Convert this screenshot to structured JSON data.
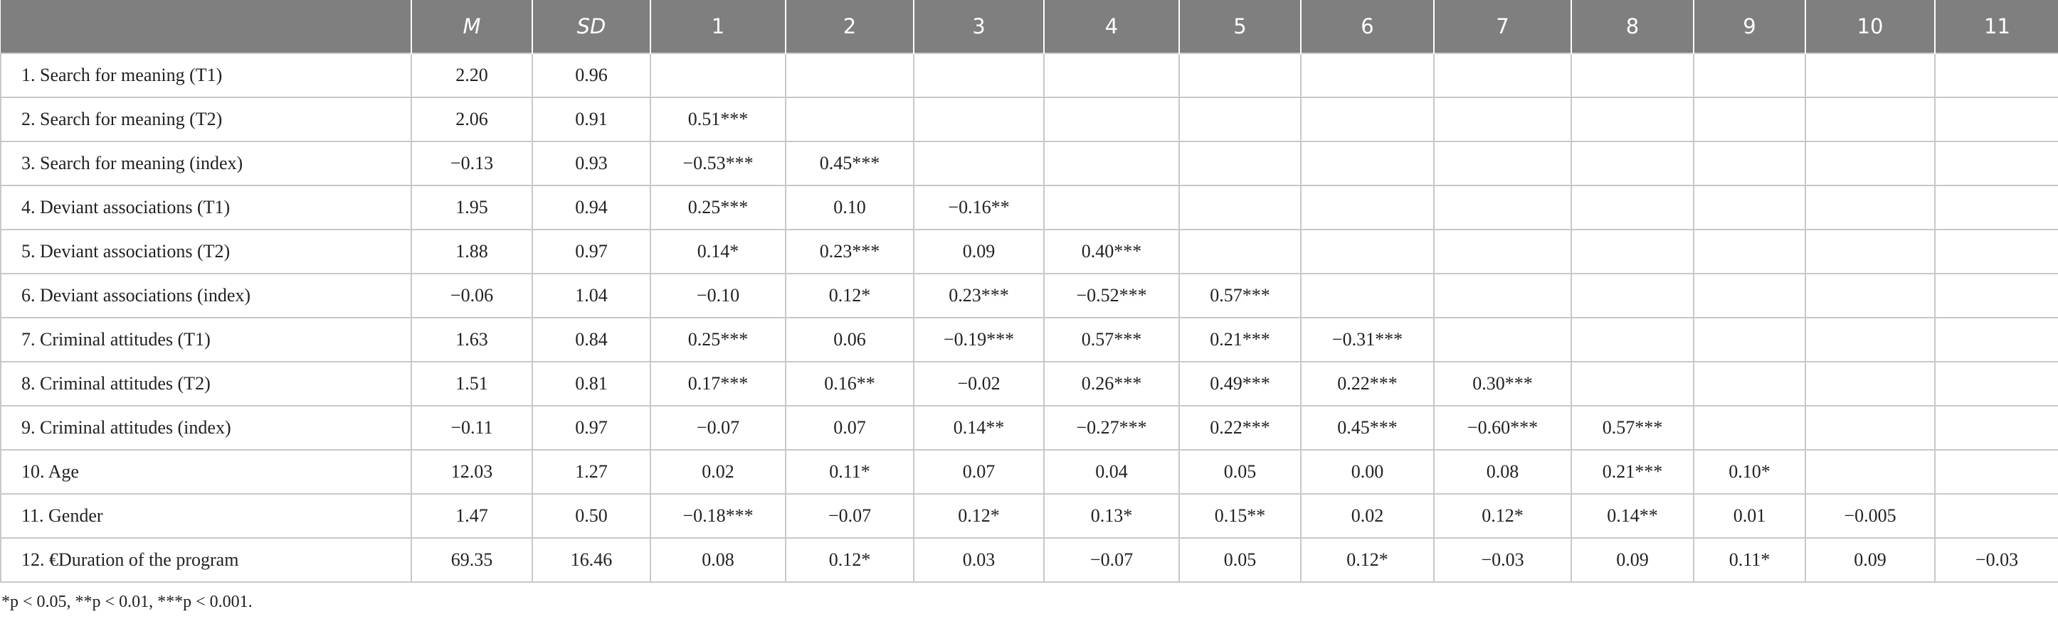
{
  "table": {
    "header": [
      "M",
      "SD",
      "1",
      "2",
      "3",
      "4",
      "5",
      "6",
      "7",
      "8",
      "9",
      "10",
      "11"
    ],
    "rows": [
      [
        "1.  Search for meaning (T1)",
        "2.20",
        "0.96"
      ],
      [
        "2.  Search for meaning (T2)",
        "2.06",
        "0.91",
        "0.51***"
      ],
      [
        "3.  Search for meaning (index)",
        "−0.13",
        "0.93",
        "−0.53***",
        "0.45***"
      ],
      [
        "4.  Deviant associations (T1)",
        "1.95",
        "0.94",
        "0.25***",
        "0.10",
        "−0.16**"
      ],
      [
        "5.  Deviant associations (T2)",
        "1.88",
        "0.97",
        "0.14*",
        "0.23***",
        "0.09",
        "0.40***"
      ],
      [
        "6.  Deviant associations (index)",
        "−0.06",
        "1.04",
        "−0.10",
        "0.12*",
        "0.23***",
        "−0.52***",
        "0.57***"
      ],
      [
        "7.  Criminal attitudes (T1)",
        "1.63",
        "0.84",
        "0.25***",
        "0.06",
        "−0.19***",
        "0.57***",
        "0.21***",
        "−0.31***"
      ],
      [
        "8.  Criminal attitudes (T2)",
        "1.51",
        "0.81",
        "0.17***",
        "0.16**",
        "−0.02",
        "0.26***",
        "0.49***",
        "0.22***",
        "0.30***"
      ],
      [
        "9.  Criminal attitudes (index)",
        "−0.11",
        "0.97",
        "−0.07",
        "0.07",
        "0.14**",
        "−0.27***",
        "0.22***",
        "0.45***",
        "−0.60***",
        "0.57***"
      ],
      [
        "10.  Age",
        "12.03",
        "1.27",
        "0.02",
        "0.11*",
        "0.07",
        "0.04",
        "0.05",
        "0.00",
        "0.08",
        "0.21***",
        "0.10*"
      ],
      [
        "11.  Gender",
        "1.47",
        "0.50",
        "−0.18***",
        "−0.07",
        "0.12*",
        "0.13*",
        "0.15**",
        "0.02",
        "0.12*",
        "0.14**",
        "0.01",
        "−0.005"
      ],
      [
        "12.  €Duration of the program",
        "69.35",
        "16.46",
        "0.08",
        "0.12*",
        "0.03",
        "−0.07",
        "0.05",
        "0.12*",
        "−0.03",
        "0.09",
        "0.11*",
        "0.09",
        "−0.03"
      ]
    ],
    "footnote": "*p < 0.05, **p < 0.01, ***p < 0.001."
  }
}
